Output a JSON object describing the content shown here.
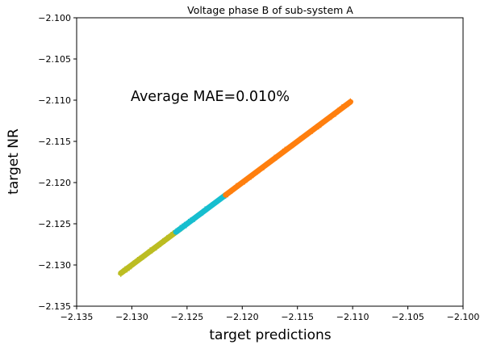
{
  "chart_data": {
    "type": "scatter",
    "title": "Voltage phase B of sub-system A",
    "xlabel": "target predictions",
    "ylabel": "target NR",
    "annotation": "Average MAE=0.010%",
    "xlim": [
      -2.135,
      -2.1
    ],
    "ylim": [
      -2.135,
      -2.1
    ],
    "xticks": [
      -2.135,
      -2.13,
      -2.125,
      -2.12,
      -2.115,
      -2.11,
      -2.105,
      -2.1
    ],
    "xtick_labels": [
      "−2.135",
      "−2.130",
      "−2.125",
      "−2.120",
      "−2.115",
      "−2.110",
      "−2.105",
      "−2.100"
    ],
    "yticks": [
      -2.135,
      -2.13,
      -2.125,
      -2.12,
      -2.115,
      -2.11,
      -2.105,
      -2.1
    ],
    "ytick_labels": [
      "−2.135",
      "−2.130",
      "−2.125",
      "−2.120",
      "−2.115",
      "−2.110",
      "−2.105",
      "−2.100"
    ],
    "grid": false,
    "marker": "+",
    "series": [
      {
        "color": "#bcbd22",
        "x_range": [
          -2.131,
          -2.1255
        ],
        "points": 30
      },
      {
        "color": "#17becf",
        "x_range": [
          -2.126,
          -2.1215
        ],
        "points": 25
      },
      {
        "color": "#ff7f0e",
        "x_range": [
          -2.1215,
          -2.1102
        ],
        "points": 60
      }
    ]
  }
}
